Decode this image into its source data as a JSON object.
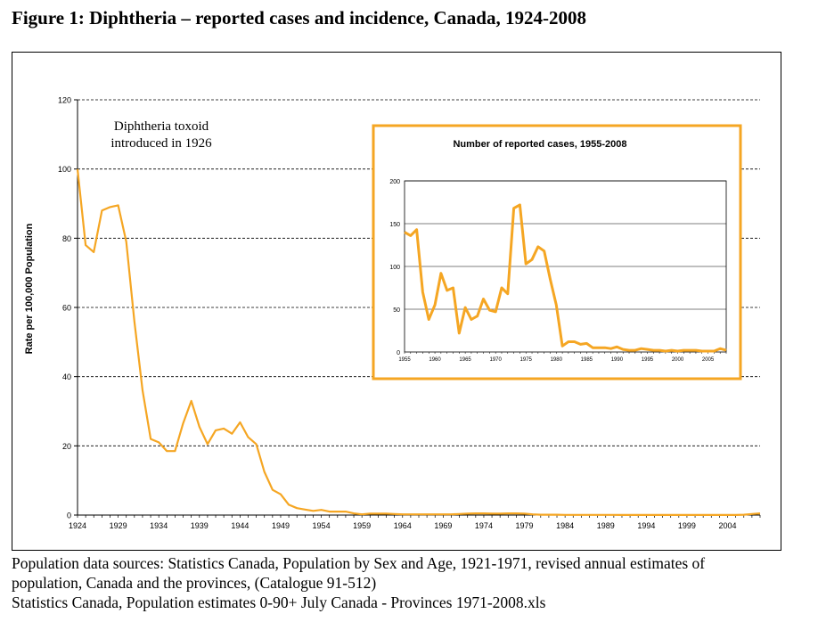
{
  "figure_title": "Figure 1: Diphtheria – reported cases and incidence, Canada, 1924-2008",
  "source_notes": [
    "Population data sources: Statistics Canada, Population by Sex and Age, 1921-1971, revised annual estimates of",
    "population, Canada and the provinces, (Catalogue 91-512)",
    "Statistics Canada, Population estimates 0-90+ July Canada - Provinces 1971-2008.xls"
  ],
  "colors": {
    "line": "#f5a623",
    "inset_border": "#f5a623",
    "grid": "#000000"
  },
  "chart_data": [
    {
      "type": "line",
      "title": "",
      "xlabel": "",
      "ylabel": "Rate per 100,000 Population",
      "xlim": [
        1924,
        2008
      ],
      "ylim": [
        0,
        120
      ],
      "yticks": [
        0,
        20,
        40,
        60,
        80,
        100,
        120
      ],
      "xticks": [
        1924,
        1929,
        1934,
        1939,
        1944,
        1949,
        1954,
        1959,
        1964,
        1969,
        1974,
        1979,
        1984,
        1989,
        1994,
        1999,
        2004
      ],
      "grid": "horizontal dashed",
      "annotation": [
        "Diphtheria toxoid",
        "introduced in 1926"
      ],
      "series": [
        {
          "x": [
            1924,
            1925,
            1926,
            1927,
            1928,
            1929,
            1930,
            1931,
            1932,
            1933,
            1934,
            1935,
            1936,
            1937,
            1938,
            1939,
            1940,
            1941,
            1942,
            1943,
            1944,
            1945,
            1946,
            1947,
            1948,
            1949,
            1950,
            1951,
            1952,
            1953,
            1954,
            1955,
            1956,
            1957,
            1958,
            1959,
            1960,
            1961,
            1962,
            1963,
            1964,
            1965,
            1966,
            1967,
            1968,
            1969,
            1970,
            1971,
            1972,
            1973,
            1974,
            1975,
            1976,
            1977,
            1978,
            1979,
            1980,
            1981,
            1982,
            1983,
            1984,
            1985,
            1986,
            1987,
            1988,
            1989,
            1990,
            1991,
            1992,
            1993,
            1994,
            1995,
            1996,
            1997,
            1998,
            1999,
            2000,
            2001,
            2002,
            2003,
            2004,
            2005,
            2006,
            2007,
            2008
          ],
          "values": [
            100,
            78,
            76,
            88,
            89,
            89.5,
            79,
            56,
            36,
            22,
            21,
            18.5,
            18.5,
            26.5,
            33,
            25.5,
            20.5,
            24.5,
            25,
            23.5,
            26.8,
            22.5,
            20.5,
            12.5,
            7.3,
            6,
            3,
            2,
            1.6,
            1.2,
            1.5,
            1,
            1,
            1,
            0.5,
            0.2,
            0.4,
            0.4,
            0.4,
            0.3,
            0.2,
            0.2,
            0.2,
            0.2,
            0.2,
            0.2,
            0.2,
            0.3,
            0.4,
            0.5,
            0.5,
            0.4,
            0.4,
            0.5,
            0.5,
            0.4,
            0.2,
            0.1,
            0.1,
            0.1,
            0.05,
            0.05,
            0.05,
            0.05,
            0.05,
            0.05,
            0.05,
            0.02,
            0.02,
            0.02,
            0.02,
            0.02,
            0.02,
            0.02,
            0.02,
            0.02,
            0.02,
            0.02,
            0.02,
            0.02,
            0.02,
            0.02,
            0.1,
            0.3,
            0.5
          ]
        }
      ]
    },
    {
      "type": "line",
      "title": "Number of reported cases, 1955-2008",
      "xlim": [
        1955,
        2008
      ],
      "ylim": [
        0,
        200
      ],
      "yticks": [
        0,
        50,
        100,
        150,
        200
      ],
      "xticks": [
        1955,
        1960,
        1965,
        1970,
        1975,
        1980,
        1985,
        1990,
        1995,
        2000,
        2005
      ],
      "grid": "horizontal solid",
      "series": [
        {
          "x": [
            1955,
            1956,
            1957,
            1958,
            1959,
            1960,
            1961,
            1962,
            1963,
            1964,
            1965,
            1966,
            1967,
            1968,
            1969,
            1970,
            1971,
            1972,
            1973,
            1974,
            1975,
            1976,
            1977,
            1978,
            1979,
            1980,
            1981,
            1982,
            1983,
            1984,
            1985,
            1986,
            1987,
            1988,
            1989,
            1990,
            1991,
            1992,
            1993,
            1994,
            1995,
            1996,
            1997,
            1998,
            1999,
            2000,
            2001,
            2002,
            2003,
            2004,
            2005,
            2006,
            2007,
            2008
          ],
          "values": [
            140,
            136,
            143,
            70,
            38,
            55,
            92,
            72,
            75,
            22,
            52,
            38,
            42,
            62,
            49,
            47,
            75,
            68,
            168,
            172,
            103,
            108,
            123,
            118,
            85,
            55,
            7,
            12,
            12,
            9,
            10,
            5,
            5,
            5,
            4,
            6,
            3,
            2,
            2,
            4,
            3,
            2,
            2,
            1,
            2,
            1,
            2,
            2,
            2,
            1,
            1,
            1,
            4,
            2
          ]
        }
      ]
    }
  ]
}
